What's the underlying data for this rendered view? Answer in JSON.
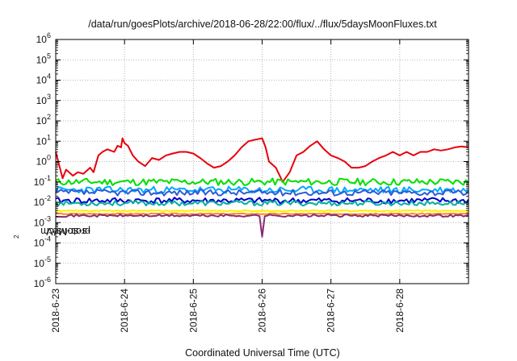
{
  "chart_data": {
    "type": "line",
    "title": "/data/run/goesPlots/archive/2018-06-28/22:00/flux/../flux/5daysMoonFluxes.txt",
    "xlabel": "Coordinated Universal Time (UTC)",
    "ylabel": "protons/cm2-s-sr-MeV",
    "ylabel_parts": {
      "before": "protons/cm",
      "sup": "2",
      "after": "-s-sr-MeV"
    },
    "x_ticks": [
      "2018-6-23",
      "2018-6-24",
      "2018-6-25",
      "2018-6-26",
      "2018-6-27",
      "2018-6-28"
    ],
    "x_range_days": [
      0,
      6.0
    ],
    "y_scale": "log",
    "y_range_exp": [
      -6,
      6
    ],
    "y_tick_base": "10",
    "y_tick_exponents": [
      "-6",
      "-5",
      "-4",
      "-3",
      "-2",
      "-1",
      "0",
      "1",
      "2",
      "3",
      "4",
      "5",
      "6"
    ],
    "grid": true,
    "legend": "none",
    "series": [
      {
        "color": "#e8000b",
        "x": [
          0,
          0.1,
          0.15,
          0.25,
          0.32,
          0.4,
          0.5,
          0.55,
          0.62,
          0.68,
          0.75,
          0.85,
          0.9,
          0.95,
          0.97,
          1.0,
          1.05,
          1.12,
          1.2,
          1.3,
          1.4,
          1.5,
          1.6,
          1.7,
          1.8,
          1.9,
          2.0,
          2.1,
          2.2,
          2.3,
          2.4,
          2.5,
          2.6,
          2.7,
          2.8,
          2.9,
          3.0,
          3.05,
          3.1,
          3.2,
          3.3,
          3.4,
          3.5,
          3.6,
          3.7,
          3.8,
          3.9,
          4.0,
          4.1,
          4.2,
          4.3,
          4.4,
          4.5,
          4.6,
          4.7,
          4.8,
          4.9,
          5.0,
          5.1,
          5.2,
          5.3,
          5.4,
          5.5,
          5.6,
          5.7,
          5.8,
          5.9,
          6.0
        ],
        "y": [
          3.0,
          0.15,
          0.4,
          0.2,
          0.3,
          0.25,
          0.5,
          0.3,
          2.0,
          3.0,
          4.0,
          3.0,
          6.0,
          5.0,
          14.0,
          8.0,
          6.0,
          2.0,
          1.0,
          0.6,
          1.5,
          1.2,
          2.0,
          2.5,
          3.0,
          3.0,
          2.5,
          1.5,
          0.8,
          0.5,
          0.6,
          1.0,
          2.0,
          5.0,
          10.0,
          12.0,
          14.0,
          5.0,
          1.0,
          0.5,
          0.1,
          0.3,
          2.0,
          3.0,
          6.0,
          10.0,
          4.0,
          2.0,
          1.5,
          1.0,
          0.5,
          0.5,
          0.6,
          1.0,
          1.5,
          2.0,
          3.0,
          2.0,
          3.0,
          2.0,
          3.0,
          3.0,
          4.0,
          3.5,
          4.0,
          5.0,
          5.5,
          5.0
        ]
      },
      {
        "color": "#00e000",
        "base": 0.1,
        "spread": 0.35,
        "seed": 11
      },
      {
        "color": "#00a8ff",
        "base": 0.04,
        "spread": 0.35,
        "seed": 23
      },
      {
        "color": "#2e5bd6",
        "base": 0.03,
        "spread": 0.3,
        "seed": 37
      },
      {
        "color": "#0000c8",
        "base": 0.012,
        "spread": 0.3,
        "seed": 41
      },
      {
        "color": "#00b0a0",
        "base": 0.009,
        "spread": 0.25,
        "seed": 53
      },
      {
        "color": "#ffee00",
        "base": 0.0038,
        "spread": 0.05,
        "seed": 61
      },
      {
        "color": "#ff8c00",
        "base": 0.0027,
        "spread": 0.05,
        "seed": 67
      },
      {
        "color": "#8b2a7a",
        "base": 0.0022,
        "spread": 0.12,
        "seed": 71
      }
    ]
  }
}
